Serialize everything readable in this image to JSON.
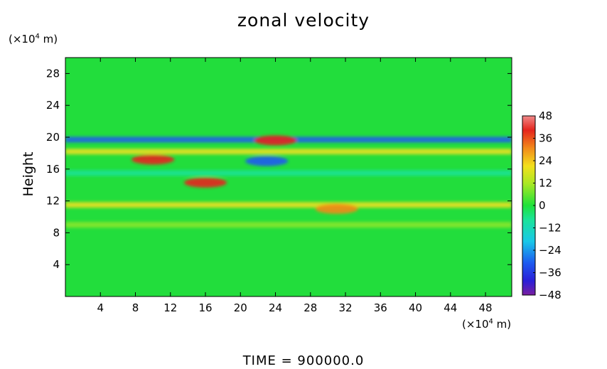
{
  "chart_data": {
    "type": "heatmap",
    "title": "zonal velocity",
    "ylabel": "Height",
    "x_unit": {
      "prefix": "(×10",
      "exp": "4",
      "suffix": " m)"
    },
    "y_unit": {
      "prefix": "(×10",
      "exp": "4",
      "suffix": " m)"
    },
    "footer": "TIME = 900000.0",
    "xlim": [
      0,
      51
    ],
    "ylim": [
      0,
      30
    ],
    "x_ticks": [
      4,
      8,
      12,
      16,
      20,
      24,
      28,
      32,
      36,
      40,
      44,
      48
    ],
    "y_ticks": [
      4,
      8,
      12,
      16,
      20,
      24,
      28
    ],
    "colorbar": {
      "range": [
        -48,
        48
      ],
      "ticks": [
        48,
        36,
        24,
        12,
        0,
        -12,
        -24,
        -36,
        -48
      ]
    },
    "features": [
      {
        "kind": "band",
        "y": 19.7,
        "x_range": [
          0,
          51
        ],
        "value": -30,
        "desc": "westward jet near 20"
      },
      {
        "kind": "blob",
        "x": 24,
        "y": 19.6,
        "value": 38
      },
      {
        "kind": "blob",
        "x": 10,
        "y": 17.2,
        "value": 34
      },
      {
        "kind": "band",
        "y": 18.2,
        "x_range": [
          0,
          51
        ],
        "value": 16
      },
      {
        "kind": "band",
        "y": 11.5,
        "x_range": [
          0,
          51
        ],
        "value": 16
      },
      {
        "kind": "blob",
        "x": 31,
        "y": 11.0,
        "value": 30
      },
      {
        "kind": "band",
        "y": 15.5,
        "x_range": [
          0,
          51
        ],
        "value": -10
      },
      {
        "kind": "band",
        "y": 9.0,
        "x_range": [
          0,
          51
        ],
        "value": 10
      },
      {
        "kind": "blob",
        "x": 16,
        "y": 14.3,
        "value": 40
      },
      {
        "kind": "blob",
        "x": 23,
        "y": 17.0,
        "value": -28
      }
    ]
  }
}
